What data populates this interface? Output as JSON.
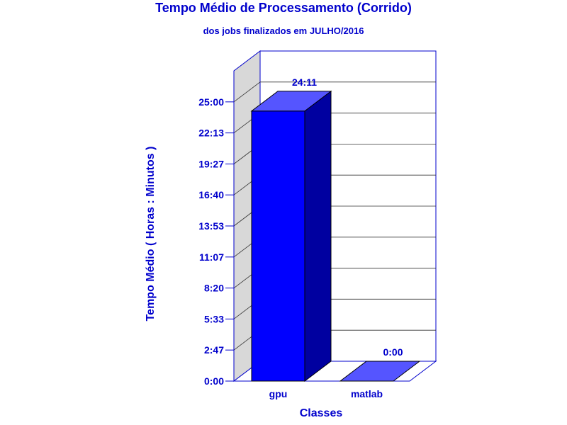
{
  "chart_data": {
    "type": "bar",
    "title": "Tempo Médio de Processamento (Corrido)",
    "subtitle": "dos jobs finalizados em JULHO/2016",
    "xlabel": "Classes",
    "ylabel": "Tempo Médio ( Horas : Minutos )",
    "categories": [
      "gpu",
      "matlab"
    ],
    "values": [
      24.18,
      0
    ],
    "value_labels": [
      "24:11",
      "0:00"
    ],
    "y_ticks": [
      0,
      2.78,
      5.56,
      8.33,
      11.11,
      13.89,
      16.67,
      19.44,
      22.22,
      25.0
    ],
    "y_tick_labels": [
      "0:00",
      "2:47",
      "5:33",
      "8:20",
      "11:07",
      "13:53",
      "16:40",
      "19:27",
      "22:13",
      "25:00"
    ],
    "ylim": [
      0,
      27.78
    ],
    "three_d": true,
    "grid": true,
    "legend": false,
    "colors": {
      "text": "#0000cc",
      "axis": "#0000cc",
      "bar_front": "#0000ff",
      "bar_top": "#5555ff",
      "bar_side": "#0000a0",
      "wall": "#d8d8d8",
      "grid": "#333333"
    }
  }
}
